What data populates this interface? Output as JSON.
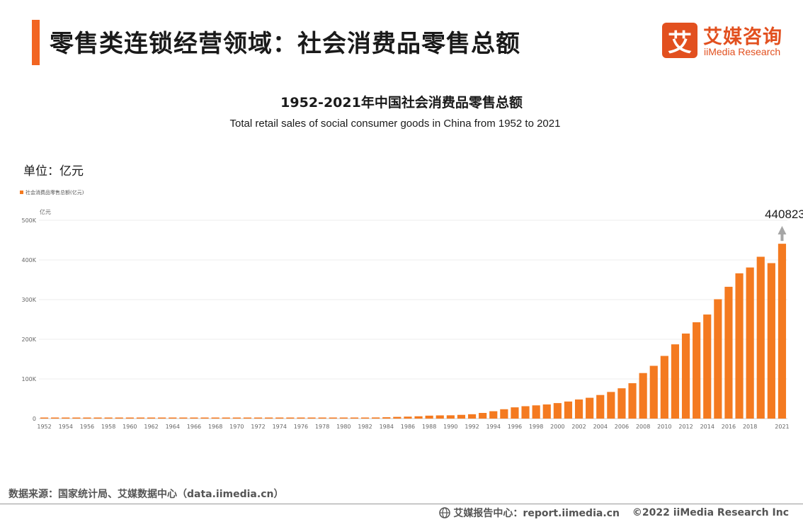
{
  "header": {
    "title": "零售类连锁经营领域：社会消费品零售总额"
  },
  "logo": {
    "mark": "艾",
    "cn": "艾媒咨询",
    "en": "iiMedia Research"
  },
  "chart": {
    "title": "1952-2021年中国社会消费品零售总额",
    "subtitle": "Total retail sales of social consumer goods in China from 1952 to 2021",
    "unit": "单位：亿元"
  },
  "chart_data": {
    "type": "bar",
    "legend": "社会消费品零售总额(亿元)",
    "legend_position": "top-left",
    "ylabel": "亿元",
    "ylim": [
      0,
      500000
    ],
    "yticks": [
      "0",
      "100K",
      "200K",
      "300K",
      "400K",
      "500K"
    ],
    "grid": true,
    "categories": [
      "1952",
      "1953",
      "1954",
      "1955",
      "1956",
      "1957",
      "1958",
      "1959",
      "1960",
      "1961",
      "1962",
      "1963",
      "1964",
      "1965",
      "1966",
      "1967",
      "1968",
      "1969",
      "1970",
      "1971",
      "1972",
      "1973",
      "1974",
      "1975",
      "1976",
      "1977",
      "1978",
      "1979",
      "1980",
      "1981",
      "1982",
      "1983",
      "1984",
      "1985",
      "1986",
      "1987",
      "1988",
      "1989",
      "1990",
      "1991",
      "1992",
      "1993",
      "1994",
      "1995",
      "1996",
      "1997",
      "1998",
      "1999",
      "2000",
      "2001",
      "2002",
      "2003",
      "2004",
      "2005",
      "2006",
      "2007",
      "2008",
      "2009",
      "2010",
      "2011",
      "2012",
      "2013",
      "2014",
      "2015",
      "2016",
      "2017",
      "2018",
      "2019",
      "2020",
      "2021"
    ],
    "xtick_labels": [
      "1952",
      "1954",
      "1956",
      "1958",
      "1960",
      "1962",
      "1964",
      "1966",
      "1968",
      "1970",
      "1972",
      "1974",
      "1976",
      "1978",
      "1980",
      "1982",
      "1984",
      "1986",
      "1988",
      "1990",
      "1992",
      "1994",
      "1996",
      "1998",
      "2000",
      "2002",
      "2004",
      "2006",
      "2008",
      "2010",
      "2012",
      "2014",
      "2016",
      "2018",
      "2021"
    ],
    "values": [
      277,
      348,
      381,
      392,
      461,
      474,
      548,
      638,
      697,
      607,
      604,
      605,
      638,
      670,
      732,
      770,
      737,
      801,
      858,
      929,
      1023,
      1107,
      1164,
      1271,
      1340,
      1432,
      1559,
      1800,
      2140,
      2350,
      2570,
      2849,
      3376,
      4305,
      4950,
      5820,
      7440,
      8101,
      8300,
      9416,
      10994,
      14270,
      18623,
      23614,
      28360,
      31253,
      33378,
      35648,
      39106,
      43055,
      48136,
      52516,
      59501,
      67177,
      76410,
      89210,
      114830,
      133048,
      158008,
      187206,
      214433,
      242843,
      262394,
      300931,
      332316,
      366262,
      380987,
      408017,
      391981,
      440823
    ],
    "annotation": {
      "label": "440823",
      "category": "2021"
    },
    "bar_color": "#f47a20",
    "arrow_color": "#a6a6a6"
  },
  "footer": {
    "source": "数据来源：国家统计局、艾媒数据中心（data.iimedia.cn）",
    "report_site": "艾媒报告中心：report.iimedia.cn",
    "copyright": "©2022 iiMedia Research Inc"
  }
}
